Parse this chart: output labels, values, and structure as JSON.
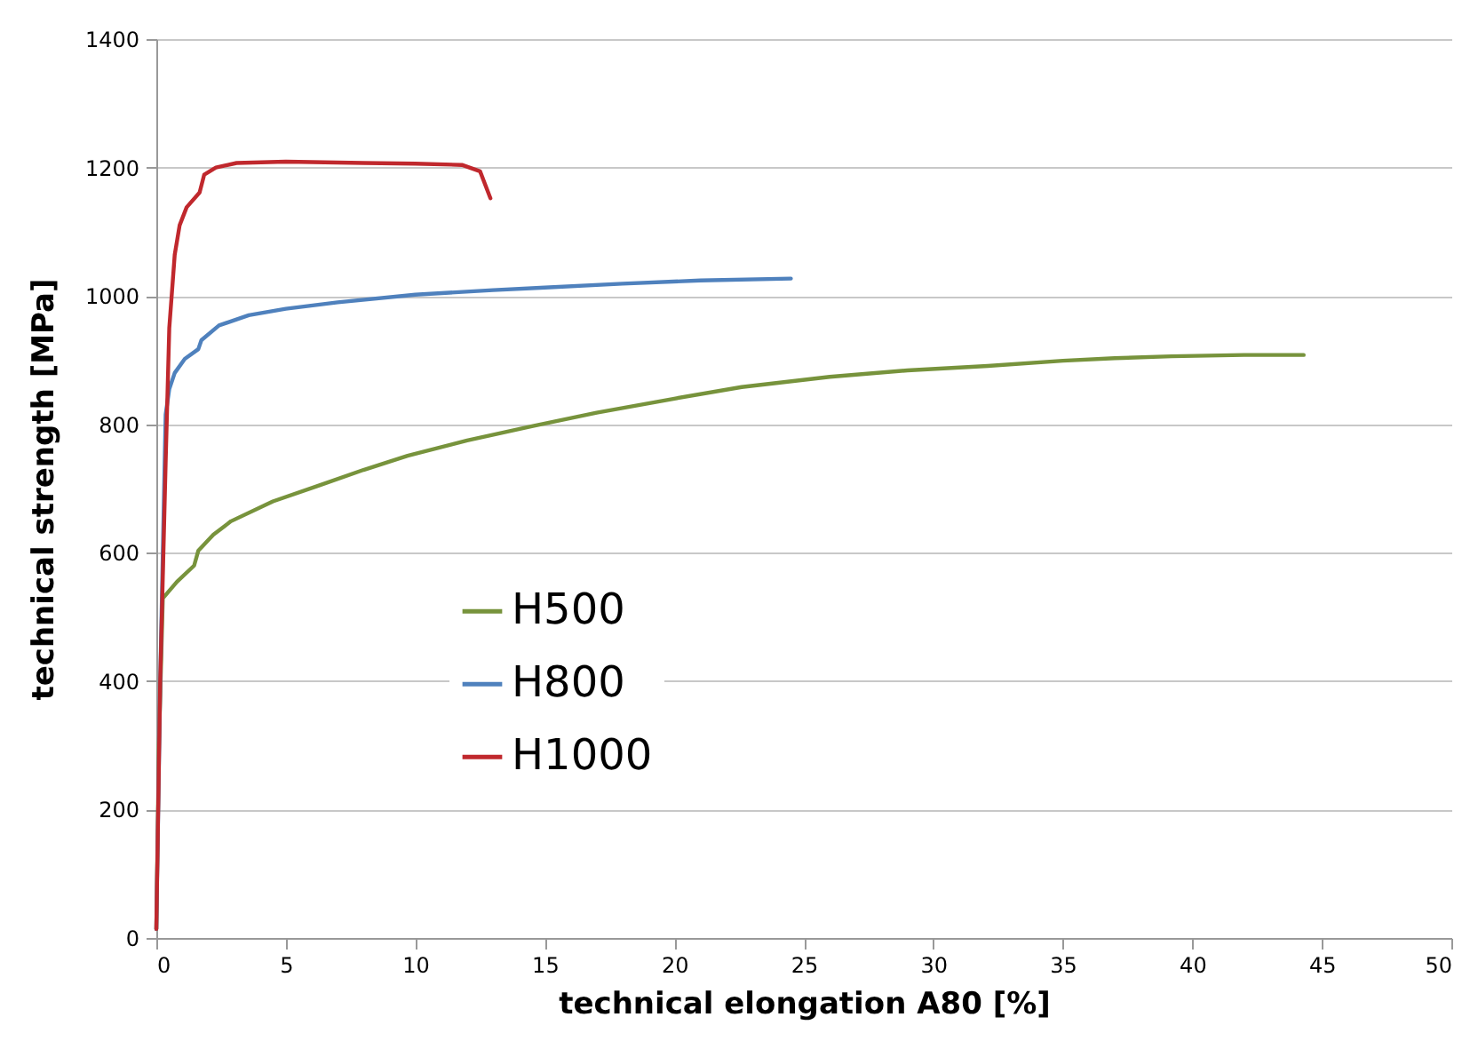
{
  "chart_data": {
    "type": "line",
    "xlabel": "technical elongation A80 [%]",
    "ylabel": "technical strength [MPa]",
    "xlim": [
      0,
      50
    ],
    "xticks": [
      0,
      5,
      10,
      15,
      20,
      25,
      30,
      35,
      40,
      45,
      50
    ],
    "ylim": [
      0,
      1400
    ],
    "yticks": [
      0,
      200,
      400,
      600,
      800,
      1000,
      1200,
      1400
    ],
    "grid": "y",
    "legend": "left",
    "marker": "none",
    "line_style": "solid",
    "series": [
      {
        "name": "H500",
        "color": "#77933c",
        "x": [
          0,
          0.1,
          0.25,
          0.8,
          1.46,
          1.62,
          2.2,
          2.88,
          4.5,
          6.3,
          8,
          9.7,
          12,
          14.5,
          17,
          20,
          22.6,
          26,
          29,
          32.1,
          35,
          37,
          39.2,
          42,
          44.3
        ],
        "values": [
          14,
          300,
          529,
          555,
          580,
          603,
          628,
          649,
          680,
          705,
          729,
          751,
          775,
          797,
          818,
          840,
          858,
          874,
          884,
          891,
          899,
          903,
          906,
          908,
          908
        ]
      },
      {
        "name": "H800",
        "color": "#4f81bd",
        "x": [
          0,
          0.15,
          0.36,
          0.5,
          0.71,
          1.1,
          1.62,
          1.74,
          2.42,
          3.57,
          5,
          7,
          10,
          13,
          15,
          18,
          21,
          24.5
        ],
        "values": [
          14,
          400,
          815,
          855,
          880,
          902,
          917,
          931,
          954,
          970,
          980,
          990,
          1002,
          1009,
          1013,
          1019,
          1024,
          1027
        ]
      },
      {
        "name": "H1000",
        "color": "#c0282d",
        "x": [
          0,
          0.15,
          0.36,
          0.5,
          0.71,
          0.9,
          1.17,
          1.67,
          1.85,
          2.3,
          3.1,
          5,
          8,
          10,
          11.8,
          12.5,
          12.9
        ],
        "values": [
          14,
          400,
          741,
          950,
          1064,
          1110,
          1138,
          1161,
          1189,
          1200,
          1207,
          1209,
          1207,
          1206,
          1204,
          1194,
          1152
        ]
      }
    ]
  }
}
